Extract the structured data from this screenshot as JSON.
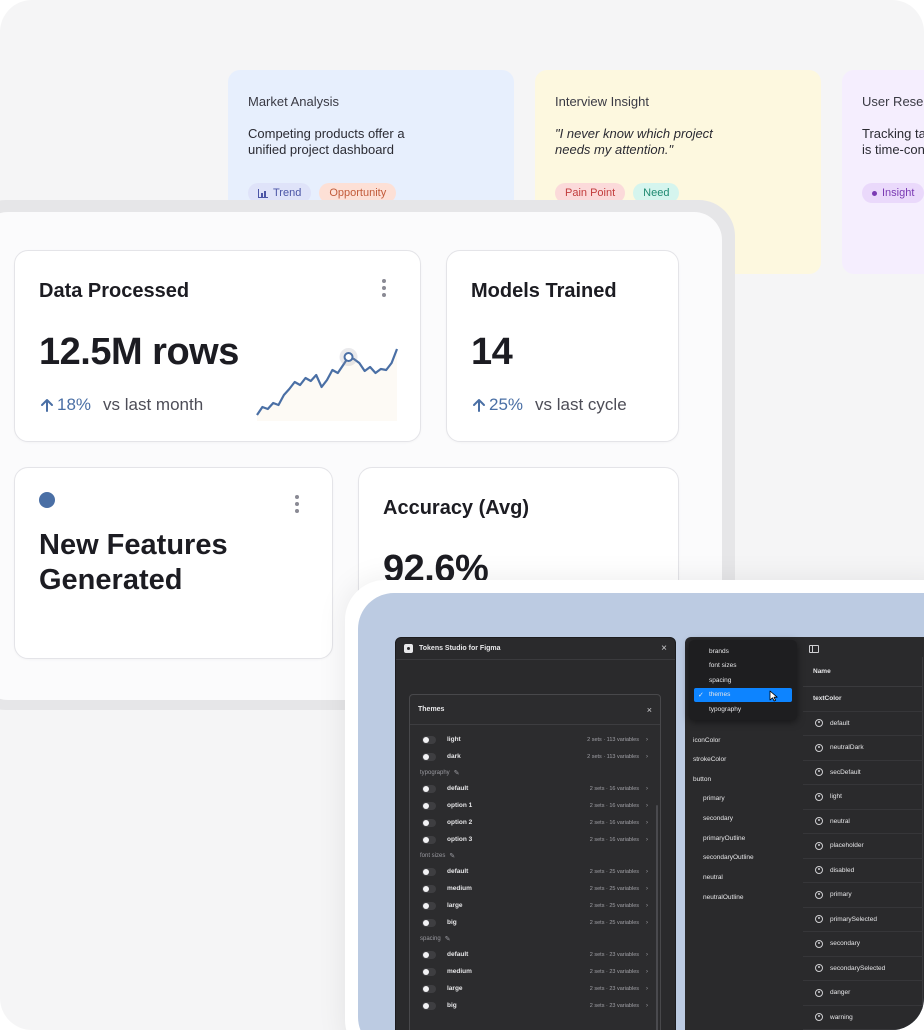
{
  "notes": [
    {
      "title": "Market Analysis",
      "body": "Competing products offer a unified project dashboard",
      "tags": [
        "Trend",
        "Opportunity"
      ]
    },
    {
      "title": "Interview Insight",
      "body": "\"I never know which project needs my attention.\"",
      "tags": [
        "Pain Point",
        "Need"
      ]
    },
    {
      "title": "User Resea",
      "body": "Tracking ta is time-con",
      "tags": [
        "Insight"
      ]
    }
  ],
  "dashboard": {
    "data_processed": {
      "title": "Data Processed",
      "value": "12.5M rows",
      "delta": "18%",
      "compare": "vs last month"
    },
    "models_trained": {
      "title": "Models Trained",
      "value": "14",
      "delta": "25%",
      "compare": "vs last cycle"
    },
    "new_features": {
      "title": "New Features Generated"
    },
    "accuracy": {
      "title": "Accuracy (Avg)",
      "value": "92.6%"
    }
  },
  "sparkline_values": [
    0,
    8,
    6,
    12,
    10,
    20,
    26,
    33,
    30,
    37,
    34,
    40,
    28,
    35,
    45,
    42,
    50,
    58,
    56,
    52,
    44,
    48,
    42,
    46,
    45,
    52,
    66
  ],
  "colors": {
    "accent": "#4a6fa5",
    "selected": "#0d84ff"
  },
  "plugin": {
    "title": "Tokens Studio for Figma",
    "close_icon": "×",
    "themes_title": "Themes",
    "groups": [
      {
        "label": "",
        "rows": [
          {
            "name": "light",
            "meta": "2 sets · 113 variables"
          },
          {
            "name": "dark",
            "meta": "2 sets · 113 variables"
          }
        ]
      },
      {
        "label": "typography",
        "rows": [
          {
            "name": "default",
            "meta": "2 sets · 16 variables"
          },
          {
            "name": "option 1",
            "meta": "2 sets · 16 variables"
          },
          {
            "name": "option 2",
            "meta": "2 sets · 16 variables"
          },
          {
            "name": "option 3",
            "meta": "2 sets · 16 variables"
          }
        ]
      },
      {
        "label": "font sizes",
        "rows": [
          {
            "name": "default",
            "meta": "2 sets · 25 variables"
          },
          {
            "name": "medium",
            "meta": "2 sets · 25 variables"
          },
          {
            "name": "large",
            "meta": "2 sets · 25 variables"
          },
          {
            "name": "big",
            "meta": "2 sets · 25 variables"
          }
        ]
      },
      {
        "label": "spacing",
        "rows": [
          {
            "name": "default",
            "meta": "2 sets · 23 variables"
          },
          {
            "name": "medium",
            "meta": "2 sets · 23 variables"
          },
          {
            "name": "large",
            "meta": "2 sets · 23 variables"
          },
          {
            "name": "big",
            "meta": "2 sets · 23 variables"
          }
        ]
      }
    ]
  },
  "dropdown": {
    "items": [
      "brands",
      "font sizes",
      "spacing",
      "themes",
      "typography"
    ],
    "selected": "themes"
  },
  "tree": [
    "iconColor",
    "strokeColor",
    "button",
    "primary",
    "secondary",
    "primaryOutline",
    "secondaryOutline",
    "neutral",
    "neutralOutline"
  ],
  "name_column": {
    "header": "Name",
    "group": "textColor",
    "rows": [
      "default",
      "neutralDark",
      "secDefault",
      "light",
      "neutral",
      "placeholder",
      "disabled",
      "primary",
      "primarySelected",
      "secondary",
      "secondarySelected",
      "danger",
      "warning"
    ]
  }
}
